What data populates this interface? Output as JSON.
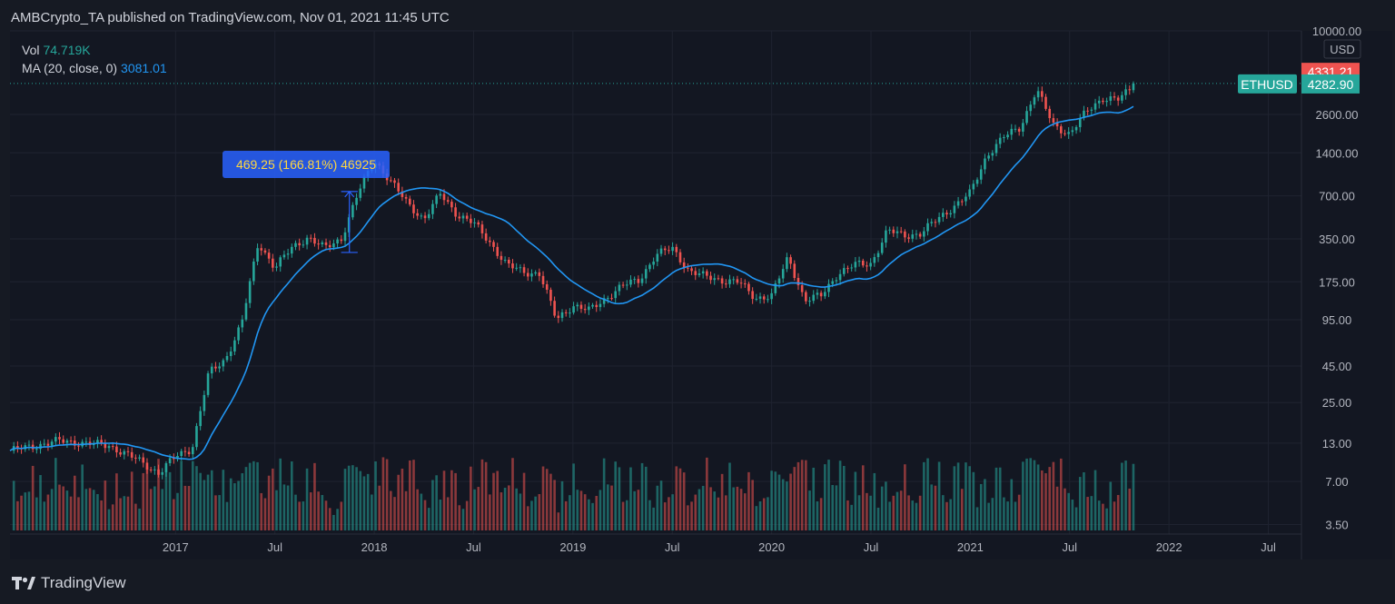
{
  "header": {
    "publisher_line": "AMBCrypto_TA published on TradingView.com, Nov 01, 2021 11:45 UTC"
  },
  "legend": {
    "vol_label": "Vol",
    "vol_value": "74.719K",
    "ma_label": "MA (20, close, 0)",
    "ma_value": "3081.01"
  },
  "footer": {
    "brand": "TradingView"
  },
  "colors": {
    "up": "#26a69a",
    "down": "#ef5350",
    "ma": "#2196f3",
    "measure": "#2962ff"
  },
  "chart_data": {
    "type": "candlestick",
    "symbol": "ETHUSD",
    "currency": "USD",
    "scale": "log",
    "ylim": [
      3,
      10000
    ],
    "y_ticks": [
      {
        "value": 10000,
        "label": "10000.00"
      },
      {
        "value": 2600,
        "label": "2600.00"
      },
      {
        "value": 1400,
        "label": "1400.00"
      },
      {
        "value": 700,
        "label": "700.00"
      },
      {
        "value": 350,
        "label": "350.00"
      },
      {
        "value": 175,
        "label": "175.00"
      },
      {
        "value": 95,
        "label": "95.00"
      },
      {
        "value": 45,
        "label": "45.00"
      },
      {
        "value": 25,
        "label": "25.00"
      },
      {
        "value": 13,
        "label": "13.00"
      },
      {
        "value": 7,
        "label": "7.00"
      },
      {
        "value": 3.5,
        "label": "3.50"
      }
    ],
    "x_ticks": [
      {
        "date": "2017-01",
        "label": "2017"
      },
      {
        "date": "2017-07",
        "label": "Jul"
      },
      {
        "date": "2018-01",
        "label": "2018"
      },
      {
        "date": "2018-07",
        "label": "Jul"
      },
      {
        "date": "2019-01",
        "label": "2019"
      },
      {
        "date": "2019-07",
        "label": "Jul"
      },
      {
        "date": "2020-01",
        "label": "2020"
      },
      {
        "date": "2020-07",
        "label": "Jul"
      },
      {
        "date": "2021-01",
        "label": "2021"
      },
      {
        "date": "2021-07",
        "label": "Jul"
      },
      {
        "date": "2022-01",
        "label": "2022"
      },
      {
        "date": "2022-07",
        "label": "Jul"
      }
    ],
    "xlim": [
      "2016-03",
      "2022-09"
    ],
    "price_keypoints": [
      [
        "2016-03",
        11.5
      ],
      [
        "2016-06",
        13.5
      ],
      [
        "2016-09",
        12.5
      ],
      [
        "2016-11",
        9.5
      ],
      [
        "2016-12",
        8
      ],
      [
        "2017-01",
        10.5
      ],
      [
        "2017-02",
        12
      ],
      [
        "2017-03",
        40
      ],
      [
        "2017-04",
        50
      ],
      [
        "2017-05",
        90
      ],
      [
        "2017-06",
        330
      ],
      [
        "2017-07",
        220
      ],
      [
        "2017-08",
        300
      ],
      [
        "2017-09",
        360
      ],
      [
        "2017-10",
        300
      ],
      [
        "2017-11",
        350
      ],
      [
        "2017-12",
        720
      ],
      [
        "2018-01",
        1250
      ],
      [
        "2018-02",
        880
      ],
      [
        "2018-03",
        620
      ],
      [
        "2018-04",
        480
      ],
      [
        "2018-05",
        720
      ],
      [
        "2018-06",
        520
      ],
      [
        "2018-07",
        450
      ],
      [
        "2018-08",
        330
      ],
      [
        "2018-09",
        230
      ],
      [
        "2018-10",
        205
      ],
      [
        "2018-11",
        200
      ],
      [
        "2018-12",
        95
      ],
      [
        "2019-01",
        120
      ],
      [
        "2019-02",
        110
      ],
      [
        "2019-03",
        135
      ],
      [
        "2019-04",
        165
      ],
      [
        "2019-05",
        180
      ],
      [
        "2019-06",
        270
      ],
      [
        "2019-07",
        300
      ],
      [
        "2019-08",
        210
      ],
      [
        "2019-09",
        190
      ],
      [
        "2019-10",
        180
      ],
      [
        "2019-11",
        175
      ],
      [
        "2019-12",
        135
      ],
      [
        "2020-01",
        140
      ],
      [
        "2020-02",
        260
      ],
      [
        "2020-03",
        130
      ],
      [
        "2020-04",
        140
      ],
      [
        "2020-05",
        200
      ],
      [
        "2020-06",
        230
      ],
      [
        "2020-07",
        235
      ],
      [
        "2020-08",
        400
      ],
      [
        "2020-09",
        370
      ],
      [
        "2020-10",
        380
      ],
      [
        "2020-11",
        480
      ],
      [
        "2020-12",
        590
      ],
      [
        "2021-01",
        730
      ],
      [
        "2021-02",
        1350
      ],
      [
        "2021-03",
        1800
      ],
      [
        "2021-04",
        2100
      ],
      [
        "2021-05",
        3900
      ],
      [
        "2021-06",
        2200
      ],
      [
        "2021-07",
        1900
      ],
      [
        "2021-08",
        2700
      ],
      [
        "2021-09",
        3400
      ],
      [
        "2021-10",
        3300
      ],
      [
        "2021-11",
        4282.9
      ]
    ],
    "volume_ylim": [
      0,
      30
    ],
    "price_tags": [
      {
        "label": "4331.21",
        "value": 4331.21,
        "color": "#ef5350"
      },
      {
        "label": "4282.90",
        "value": 4282.9,
        "color": "#26a69a"
      }
    ],
    "symbol_tag": "ETHUSD",
    "measure": {
      "label": "469.25 (166.81%) 46925",
      "from_date": "2017-11",
      "to_date": "2017-12",
      "from_value": 281,
      "to_value": 750
    },
    "volume_legend_value": "74.719K",
    "ma_period": 20
  }
}
